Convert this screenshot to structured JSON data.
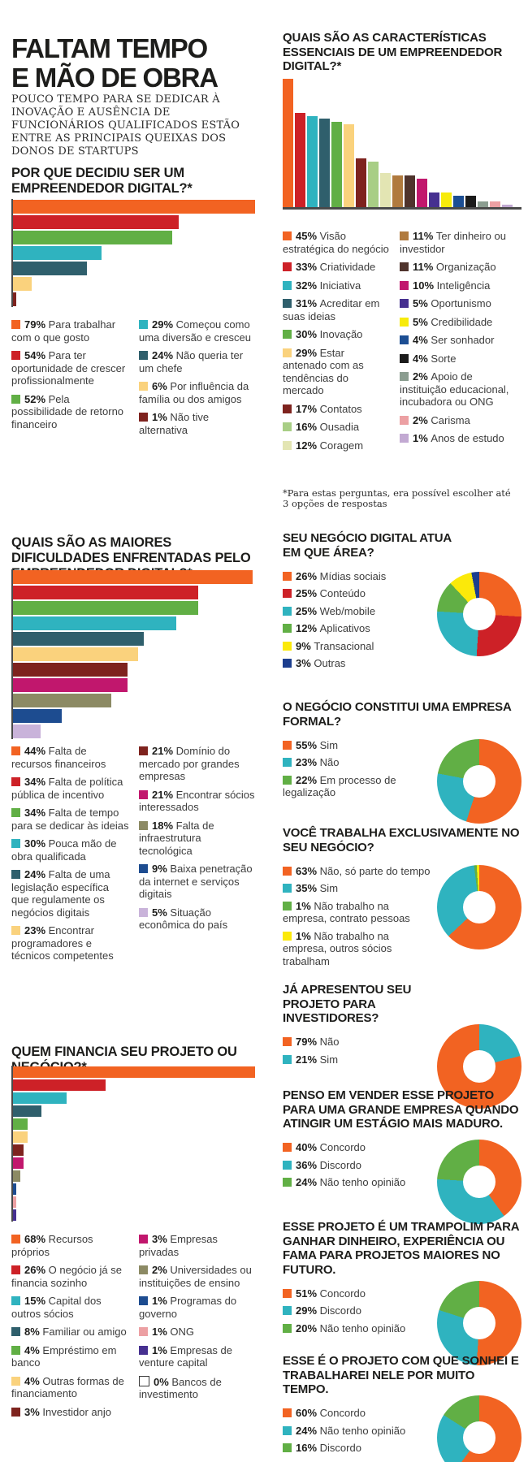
{
  "header": {
    "title": "FALTAM TEMPO\nE MÃO DE OBRA",
    "subtitle": "POUCO TEMPO PARA SE DEDICAR À INOVAÇÃO E AUSÊNCIA DE FUNCIONÁRIOS QUALIFICADOS ESTÃO ENTRE AS PRINCIPAIS QUEIXAS DOS DONOS DE STARTUPS"
  },
  "footnote": "*Para estas perguntas, era possível escolher até\n3 opções de respostas",
  "chart_data": [
    {
      "id": "why",
      "type": "bar",
      "orientation": "horizontal",
      "title": "POR QUE DECIDIU SER UM EMPREENDEDOR DIGITAL?*",
      "axis_max": 80,
      "legend_col_split": 3,
      "unit": "%",
      "items": [
        {
          "value": 79,
          "label": "Para trabalhar com o que gosto",
          "color": "#F26322"
        },
        {
          "value": 54,
          "label": "Para ter oportunidade de crescer profissionalmente",
          "color": "#CD2127"
        },
        {
          "value": 52,
          "label": "Pela possibilidade de retorno financeiro",
          "color": "#61AF45"
        },
        {
          "value": 29,
          "label": "Começou como uma diversão e cresceu",
          "color": "#2FB3BF"
        },
        {
          "value": 24,
          "label": "Não queria ter um chefe",
          "color": "#2F5F6C"
        },
        {
          "value": 6,
          "label": "Por influência da família ou dos amigos",
          "color": "#FAD27D"
        },
        {
          "value": 1,
          "label": "Não tive alternativa",
          "color": "#7E231E"
        }
      ]
    },
    {
      "id": "characteristics",
      "type": "bar",
      "orientation": "vertical",
      "title": "QUAIS SÃO AS CARACTERÍSTICAS ESSENCIAIS DE UM EMPREENDEDOR DIGITAL?*",
      "axis_max": 45,
      "legend_col_split": 9,
      "unit": "%",
      "items": [
        {
          "value": 45,
          "label": "Visão estratégica do negócio",
          "color": "#F26322"
        },
        {
          "value": 33,
          "label": "Criatividade",
          "color": "#CD2127"
        },
        {
          "value": 32,
          "label": "Iniciativa",
          "color": "#2FB3BF"
        },
        {
          "value": 31,
          "label": "Acreditar em suas ideias",
          "color": "#2F5F6C"
        },
        {
          "value": 30,
          "label": "Inovação",
          "color": "#61AF45"
        },
        {
          "value": 29,
          "label": "Estar antenado com as tendências do mercado",
          "color": "#FAD27D"
        },
        {
          "value": 17,
          "label": "Contatos",
          "color": "#7E231E"
        },
        {
          "value": 16,
          "label": "Ousadia",
          "color": "#A8CE85"
        },
        {
          "value": 12,
          "label": "Coragem",
          "color": "#E3E5B3"
        },
        {
          "value": 11,
          "label": "Ter dinheiro ou investidor",
          "color": "#B07A3E"
        },
        {
          "value": 11,
          "label": "Organização",
          "color": "#4F332C"
        },
        {
          "value": 10,
          "label": "Inteligência",
          "color": "#C1176D"
        },
        {
          "value": 5,
          "label": "Oportunismo",
          "color": "#463090"
        },
        {
          "value": 5,
          "label": "Credibilidade",
          "color": "#F7EB0B"
        },
        {
          "value": 4,
          "label": "Ser sonhador",
          "color": "#1C4E93"
        },
        {
          "value": 4,
          "label": "Sorte",
          "color": "#1B1B1B"
        },
        {
          "value": 2,
          "label": "Apoio de instituição educacional, incubadora ou ONG",
          "color": "#8B9D90"
        },
        {
          "value": 2,
          "label": "Carisma",
          "color": "#ECA0A3"
        },
        {
          "value": 1,
          "label": "Anos de estudo",
          "color": "#C2A9D2"
        }
      ]
    },
    {
      "id": "difficulties",
      "type": "bar",
      "orientation": "horizontal",
      "title": "QUAIS SÃO AS MAIORES DIFICULDADES ENFRENTADAS PELO EMPREENDEDOR DIGITAL?*",
      "axis_max": 45,
      "legend_col_split": 6,
      "unit": "%",
      "items": [
        {
          "value": 44,
          "label": "Falta de recursos financeiros",
          "color": "#F26322"
        },
        {
          "value": 34,
          "label": "Falta de política pública de incentivo",
          "color": "#CD2127"
        },
        {
          "value": 34,
          "label": "Falta de tempo para se dedicar às ideias",
          "color": "#61AF45"
        },
        {
          "value": 30,
          "label": "Pouca mão de obra qualificada",
          "color": "#2FB3BF"
        },
        {
          "value": 24,
          "label": "Falta de uma legislação específica que regulamente os negócios digitais",
          "color": "#2F5F6C"
        },
        {
          "value": 23,
          "label": "Encontrar programadores e técnicos competentes",
          "color": "#FAD27D"
        },
        {
          "value": 21,
          "label": "Domínio do mercado por grandes empresas",
          "color": "#7E231E"
        },
        {
          "value": 21,
          "label": "Encontrar sócios interessados",
          "color": "#C1176D"
        },
        {
          "value": 18,
          "label": "Falta de infraestrutura tecnológica",
          "color": "#8C8A64"
        },
        {
          "value": 9,
          "label": "Baixa penetração da internet e serviços digitais",
          "color": "#1D4C90"
        },
        {
          "value": 5,
          "label": "Situação econômica do país",
          "color": "#C9B3DA"
        }
      ]
    },
    {
      "id": "financing",
      "type": "bar",
      "orientation": "horizontal",
      "title": "QUEM FINANCIA SEU PROJETO OU NEGÓCIO?*",
      "axis_max": 69,
      "legend_col_split": 7,
      "unit": "%",
      "items": [
        {
          "value": 68,
          "label": "Recursos próprios",
          "color": "#F26322"
        },
        {
          "value": 26,
          "label": "O negócio já se financia sozinho",
          "color": "#CD2127"
        },
        {
          "value": 15,
          "label": "Capital dos outros sócios",
          "color": "#2FB3BF"
        },
        {
          "value": 8,
          "label": "Familiar ou amigo",
          "color": "#2F5F6C"
        },
        {
          "value": 4,
          "label": "Empréstimo em banco",
          "color": "#61AF45"
        },
        {
          "value": 4,
          "label": "Outras formas de financiamento",
          "color": "#FAD27D"
        },
        {
          "value": 3,
          "label": "Investidor anjo",
          "color": "#7E231E"
        },
        {
          "value": 3,
          "label": "Empresas privadas",
          "color": "#C1176D"
        },
        {
          "value": 2,
          "label": "Universidades ou instituições de ensino",
          "color": "#8C8A64"
        },
        {
          "value": 1,
          "label": "Programas do governo",
          "color": "#1D4C90"
        },
        {
          "value": 1,
          "label": "ONG",
          "color": "#ECA0A3"
        },
        {
          "value": 1,
          "label": "Empresas de venture capital",
          "color": "#463090"
        },
        {
          "value": 0,
          "label": "Bancos de investimento",
          "color": "#FFFFFF",
          "outline": true
        }
      ]
    },
    {
      "id": "area",
      "type": "donut",
      "title": "SEU NEGÓCIO DIGITAL ATUA EM QUE ÁREA?",
      "items": [
        {
          "value": 26,
          "label": "Mídias sociais",
          "color": "#F26322"
        },
        {
          "value": 25,
          "label": "Conteúdo",
          "color": "#CD2127"
        },
        {
          "value": 25,
          "label": "Web/mobile",
          "color": "#2FB3BF"
        },
        {
          "value": 12,
          "label": "Aplicativos",
          "color": "#61AF45"
        },
        {
          "value": 9,
          "label": "Transacional",
          "color": "#FBE90A"
        },
        {
          "value": 3,
          "label": "Outras",
          "color": "#1C3E8E"
        }
      ]
    },
    {
      "id": "formal",
      "type": "donut",
      "title": "O NEGÓCIO CONSTITUI UMA EMPRESA FORMAL?",
      "items": [
        {
          "value": 55,
          "label": "Sim",
          "color": "#F26322"
        },
        {
          "value": 23,
          "label": "Não",
          "color": "#2FB3BF"
        },
        {
          "value": 22,
          "label": "Em processo de legalização",
          "color": "#61AF45"
        }
      ]
    },
    {
      "id": "exclusive",
      "type": "donut",
      "title": "VOCÊ TRABALHA EXCLUSIVAMENTE NO SEU NEGÓCIO?",
      "items": [
        {
          "value": 63,
          "label": "Não, só parte do tempo",
          "color": "#F26322"
        },
        {
          "value": 35,
          "label": "Sim",
          "color": "#2FB3BF"
        },
        {
          "value": 1,
          "label": "Não trabalho na empresa, contrato pessoas",
          "color": "#61AF45"
        },
        {
          "value": 1,
          "label": "Não trabalho na empresa, outros sócios trabalham",
          "color": "#FBE90A"
        }
      ]
    },
    {
      "id": "investors",
      "type": "donut",
      "title": "JÁ APRESENTOU SEU PROJETO PARA INVESTIDORES?",
      "draw": [
        1,
        0
      ],
      "items": [
        {
          "value": 79,
          "label": "Não",
          "color": "#F26322"
        },
        {
          "value": 21,
          "label": "Sim",
          "color": "#2FB3BF"
        }
      ]
    },
    {
      "id": "sell",
      "type": "donut",
      "title": "PENSO EM VENDER ESSE PROJETO PARA UMA GRANDE EMPRESA QUANDO ATINGIR UM ESTÁGIO MAIS MADURO.",
      "items": [
        {
          "value": 40,
          "label": "Concordo",
          "color": "#F26322"
        },
        {
          "value": 36,
          "label": "Discordo",
          "color": "#2FB3BF"
        },
        {
          "value": 24,
          "label": "Não tenho opinião",
          "color": "#61AF45"
        }
      ]
    },
    {
      "id": "springboard",
      "type": "donut",
      "title": "ESSE PROJETO É UM TRAMPOLIM PARA GANHAR DINHEIRO, EXPERIÊNCIA OU FAMA PARA PROJETOS MAIORES NO FUTURO.",
      "items": [
        {
          "value": 51,
          "label": "Concordo",
          "color": "#F26322"
        },
        {
          "value": 29,
          "label": "Discordo",
          "color": "#2FB3BF"
        },
        {
          "value": 20,
          "label": "Não tenho opinião",
          "color": "#61AF45"
        }
      ]
    },
    {
      "id": "dream",
      "type": "donut",
      "title": "ESSE É O PROJETO COM QUE SONHEI E TRABALHAREI NELE POR MUITO TEMPO.",
      "items": [
        {
          "value": 60,
          "label": "Concordo",
          "color": "#F26322"
        },
        {
          "value": 24,
          "label": "Não tenho opinião",
          "color": "#2FB3BF"
        },
        {
          "value": 16,
          "label": "Discordo",
          "color": "#61AF45"
        }
      ]
    }
  ]
}
